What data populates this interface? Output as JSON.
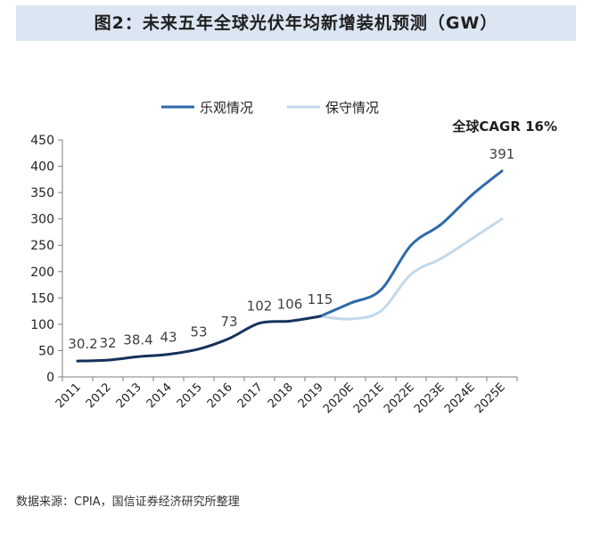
{
  "title": "图2：未来五年全球光伏年均新增装机预测（GW）",
  "source": "数据来源：CPIA，国信证券经济研究所整理",
  "colors": {
    "optimistic": "#2e6aa8",
    "conservative": "#c3d8ea",
    "historical": "#16315c",
    "title_bg": "#dce6f2"
  },
  "chart_data": {
    "type": "line",
    "categories": [
      "2011",
      "2012",
      "2013",
      "2014",
      "2015",
      "2016",
      "2017",
      "2018",
      "2019",
      "2020E",
      "2021E",
      "2022E",
      "2023E",
      "2024E",
      "2025E"
    ],
    "series": [
      {
        "name": "乐观情况",
        "values": [
          30.2,
          32,
          38.4,
          43,
          53,
          73,
          102,
          106,
          115,
          140,
          165,
          250,
          290,
          345,
          391
        ]
      },
      {
        "name": "保守情况",
        "values": [
          30.2,
          32,
          38.4,
          43,
          53,
          73,
          102,
          106,
          115,
          110,
          125,
          195,
          225,
          262,
          300
        ]
      }
    ],
    "data_labels": [
      "30.2",
      "32",
      "38.4",
      "43",
      "53",
      "73",
      "102",
      "106",
      "115",
      "391"
    ],
    "annotation": "全球CAGR 16%",
    "ylim": [
      0,
      450
    ],
    "yticks": [
      0,
      50,
      100,
      150,
      200,
      250,
      300,
      350,
      400,
      450
    ],
    "legend_position": "top",
    "grid": false
  }
}
